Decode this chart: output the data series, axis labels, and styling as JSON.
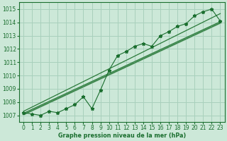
{
  "x_values": [
    0,
    1,
    2,
    3,
    4,
    5,
    6,
    7,
    8,
    9,
    10,
    11,
    12,
    13,
    14,
    15,
    16,
    17,
    18,
    19,
    20,
    21,
    22,
    23
  ],
  "y_values": [
    1007.2,
    1007.1,
    1007.0,
    1007.3,
    1007.2,
    1007.5,
    1007.8,
    1008.4,
    1007.5,
    1008.9,
    1010.4,
    1011.5,
    1011.8,
    1012.2,
    1012.4,
    1012.2,
    1013.0,
    1013.3,
    1013.7,
    1013.9,
    1014.5,
    1014.8,
    1015.0,
    1014.1
  ],
  "trend_line1": [
    1007.05,
    1007.35,
    1007.65,
    1007.95,
    1008.25,
    1008.55,
    1008.85,
    1009.15,
    1009.45,
    1009.75,
    1010.05,
    1010.35,
    1010.65,
    1010.95,
    1011.25,
    1011.55,
    1011.85,
    1012.15,
    1012.45,
    1012.75,
    1013.05,
    1013.35,
    1013.65,
    1013.95
  ],
  "trend_line2": [
    1007.15,
    1007.45,
    1007.75,
    1008.05,
    1008.35,
    1008.65,
    1008.95,
    1009.25,
    1009.55,
    1009.85,
    1010.15,
    1010.45,
    1010.75,
    1011.05,
    1011.35,
    1011.65,
    1011.95,
    1012.25,
    1012.55,
    1012.85,
    1013.15,
    1013.45,
    1013.75,
    1014.05
  ],
  "trend_line3": [
    1007.3,
    1007.62,
    1007.94,
    1008.26,
    1008.58,
    1008.9,
    1009.22,
    1009.54,
    1009.86,
    1010.18,
    1010.5,
    1010.82,
    1011.14,
    1011.46,
    1011.78,
    1012.1,
    1012.42,
    1012.74,
    1013.06,
    1013.38,
    1013.7,
    1014.02,
    1014.34,
    1014.66
  ],
  "bg_color": "#cce8d8",
  "grid_color": "#a8d0bc",
  "line_color": "#1a6e2e",
  "trend_color": "#2a7a3a",
  "xlabel": "Graphe pression niveau de la mer (hPa)",
  "ylim": [
    1006.5,
    1015.5
  ],
  "xlim": [
    -0.5,
    23.5
  ],
  "yticks": [
    1007,
    1008,
    1009,
    1010,
    1011,
    1012,
    1013,
    1014,
    1015
  ],
  "xticks": [
    0,
    1,
    2,
    3,
    4,
    5,
    6,
    7,
    8,
    9,
    10,
    11,
    12,
    13,
    14,
    15,
    16,
    17,
    18,
    19,
    20,
    21,
    22,
    23
  ]
}
